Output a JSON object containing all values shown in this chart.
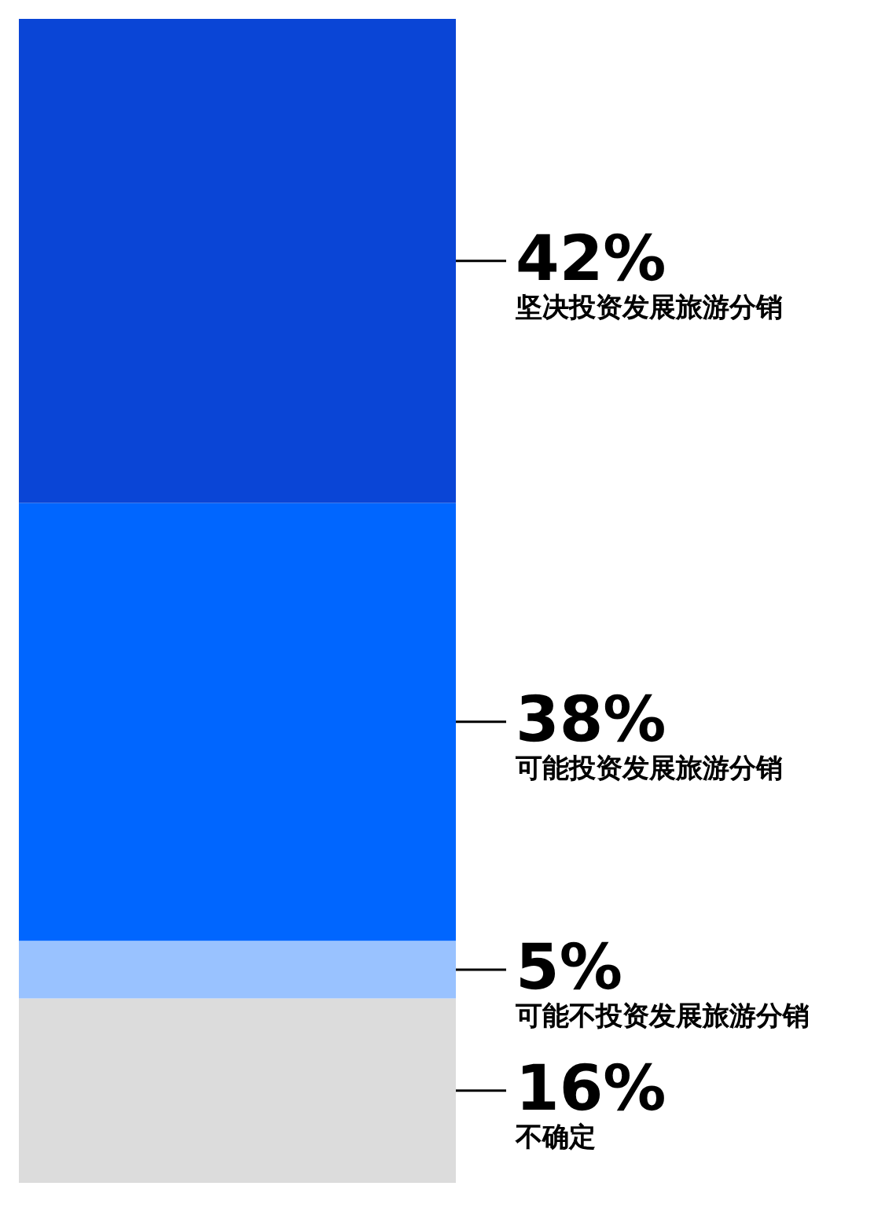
{
  "chart_data": {
    "type": "bar",
    "stacked": true,
    "categories": [
      null
    ],
    "series": [
      {
        "name": "不确定",
        "color": "#dcdcdc",
        "values": [
          16
        ],
        "value_labels": [
          "16%"
        ]
      },
      {
        "name": "可能不投资发展旅游分销",
        "color": "#99c2ff",
        "values": [
          5
        ],
        "value_labels": [
          "5%"
        ]
      },
      {
        "name": "可能投资发展旅游分销",
        "color": "#0066ff",
        "values": [
          38
        ],
        "value_labels": [
          "38%"
        ]
      },
      {
        "name": "坚决投资发展旅游分销",
        "color": "#0a45d6",
        "values": [
          42
        ],
        "value_labels": [
          "42%"
        ]
      }
    ]
  }
}
